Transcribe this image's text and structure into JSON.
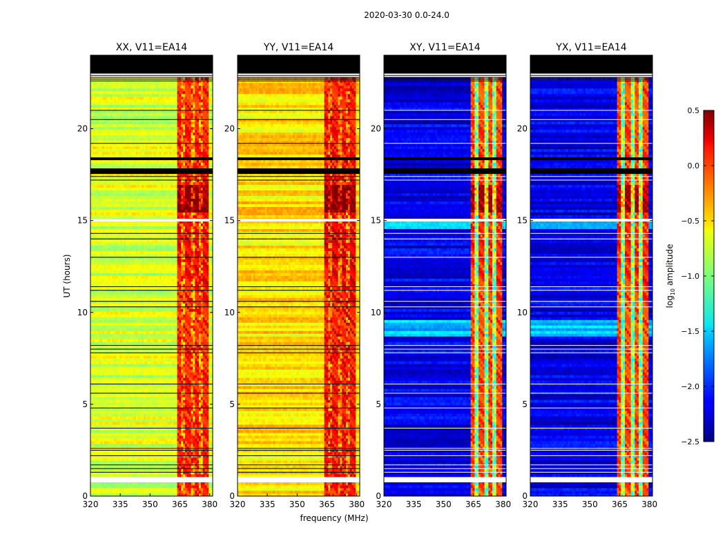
{
  "figure_title": "2020-03-30 0.0-24.0",
  "chart_data": {
    "type": "heatmap",
    "suptitle": "2020-03-30 0.0-24.0",
    "xlabel": "frequency (MHz)",
    "ylabel": "UT (hours)",
    "xlim": [
      320,
      381.5
    ],
    "ylim": [
      0,
      24
    ],
    "xticks": [
      "320",
      "335",
      "350",
      "365",
      "380"
    ],
    "xtick_values": [
      320,
      335,
      350,
      365,
      380
    ],
    "yticks": [
      "0",
      "5",
      "10",
      "15",
      "20"
    ],
    "ytick_values": [
      0,
      5,
      10,
      15,
      20
    ],
    "colorbar": {
      "label": "log10 amplitude",
      "label_prefix": "log",
      "label_sub": "10",
      "label_suffix": " amplitude",
      "range": [
        -2.5,
        0.5
      ],
      "ticks": [
        "−2.5",
        "−2.0",
        "−1.5",
        "−1.0",
        "−0.5",
        "0.0",
        "0.5"
      ],
      "tick_values": [
        -2.5,
        -2.0,
        -1.5,
        -1.0,
        -0.5,
        0.0,
        0.5
      ]
    },
    "panels": [
      {
        "title": "XX, V11=EA14",
        "kind": "auto",
        "offband_level": -0.75,
        "band_level": -0.2,
        "peak_level": 0.3
      },
      {
        "title": "YY, V11=EA14",
        "kind": "auto",
        "offband_level": -0.55,
        "band_level": -0.1,
        "peak_level": 0.35
      },
      {
        "title": "XY, V11=EA14",
        "kind": "cross",
        "offband_level": -2.2,
        "band_level": -1.0,
        "peak_level": 0.2
      },
      {
        "title": "YX, V11=EA14",
        "kind": "cross",
        "offband_level": -2.2,
        "band_level": -1.0,
        "peak_level": 0.2
      }
    ],
    "rfi_band_mhz": [
      363.5,
      380
    ],
    "strong_channels_mhz": [
      364.5,
      369,
      373.5,
      378
    ],
    "flagged_ut_hours": [
      [
        0.7,
        1.1
      ],
      [
        22.8,
        23.0
      ],
      [
        23.0,
        24.0
      ]
    ],
    "blanked_ut_hours": [
      [
        17.5,
        17.9
      ],
      [
        18.3,
        18.5
      ]
    ]
  }
}
